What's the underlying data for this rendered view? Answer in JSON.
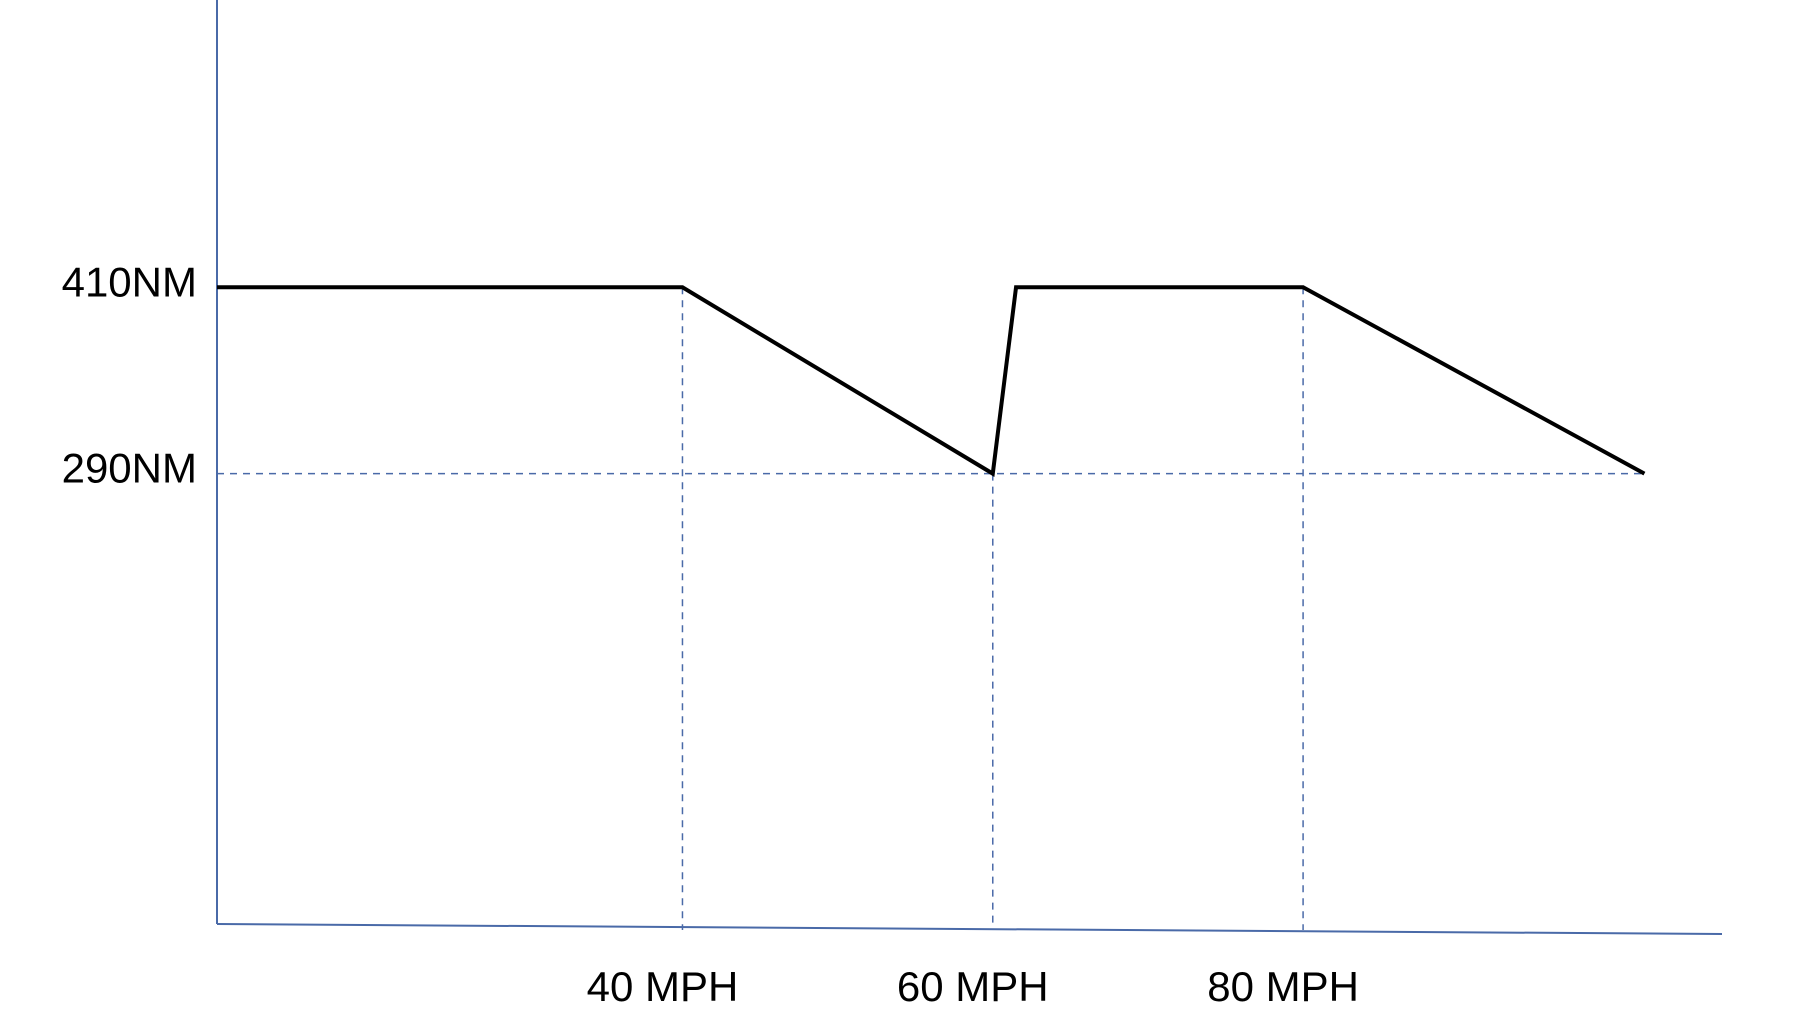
{
  "chart_data": {
    "type": "line",
    "x": [
      10,
      40,
      60,
      61.5,
      80,
      102
    ],
    "series": [
      {
        "color": "#000000",
        "values": [
          410,
          410,
          290,
          410,
          410,
          290
        ]
      }
    ],
    "xlim": [
      10,
      107
    ],
    "ylim": [
      0,
      595
    ],
    "xticks": [
      {
        "value": 40,
        "label": "40 MPH"
      },
      {
        "value": 60,
        "label": "60 MPH"
      },
      {
        "value": 80,
        "label": "80 MPH"
      }
    ],
    "yticks": [
      {
        "value": 290,
        "label": "290NM"
      },
      {
        "value": 410,
        "label": "410NM"
      }
    ],
    "axis_color": "#4a6aa8"
  }
}
